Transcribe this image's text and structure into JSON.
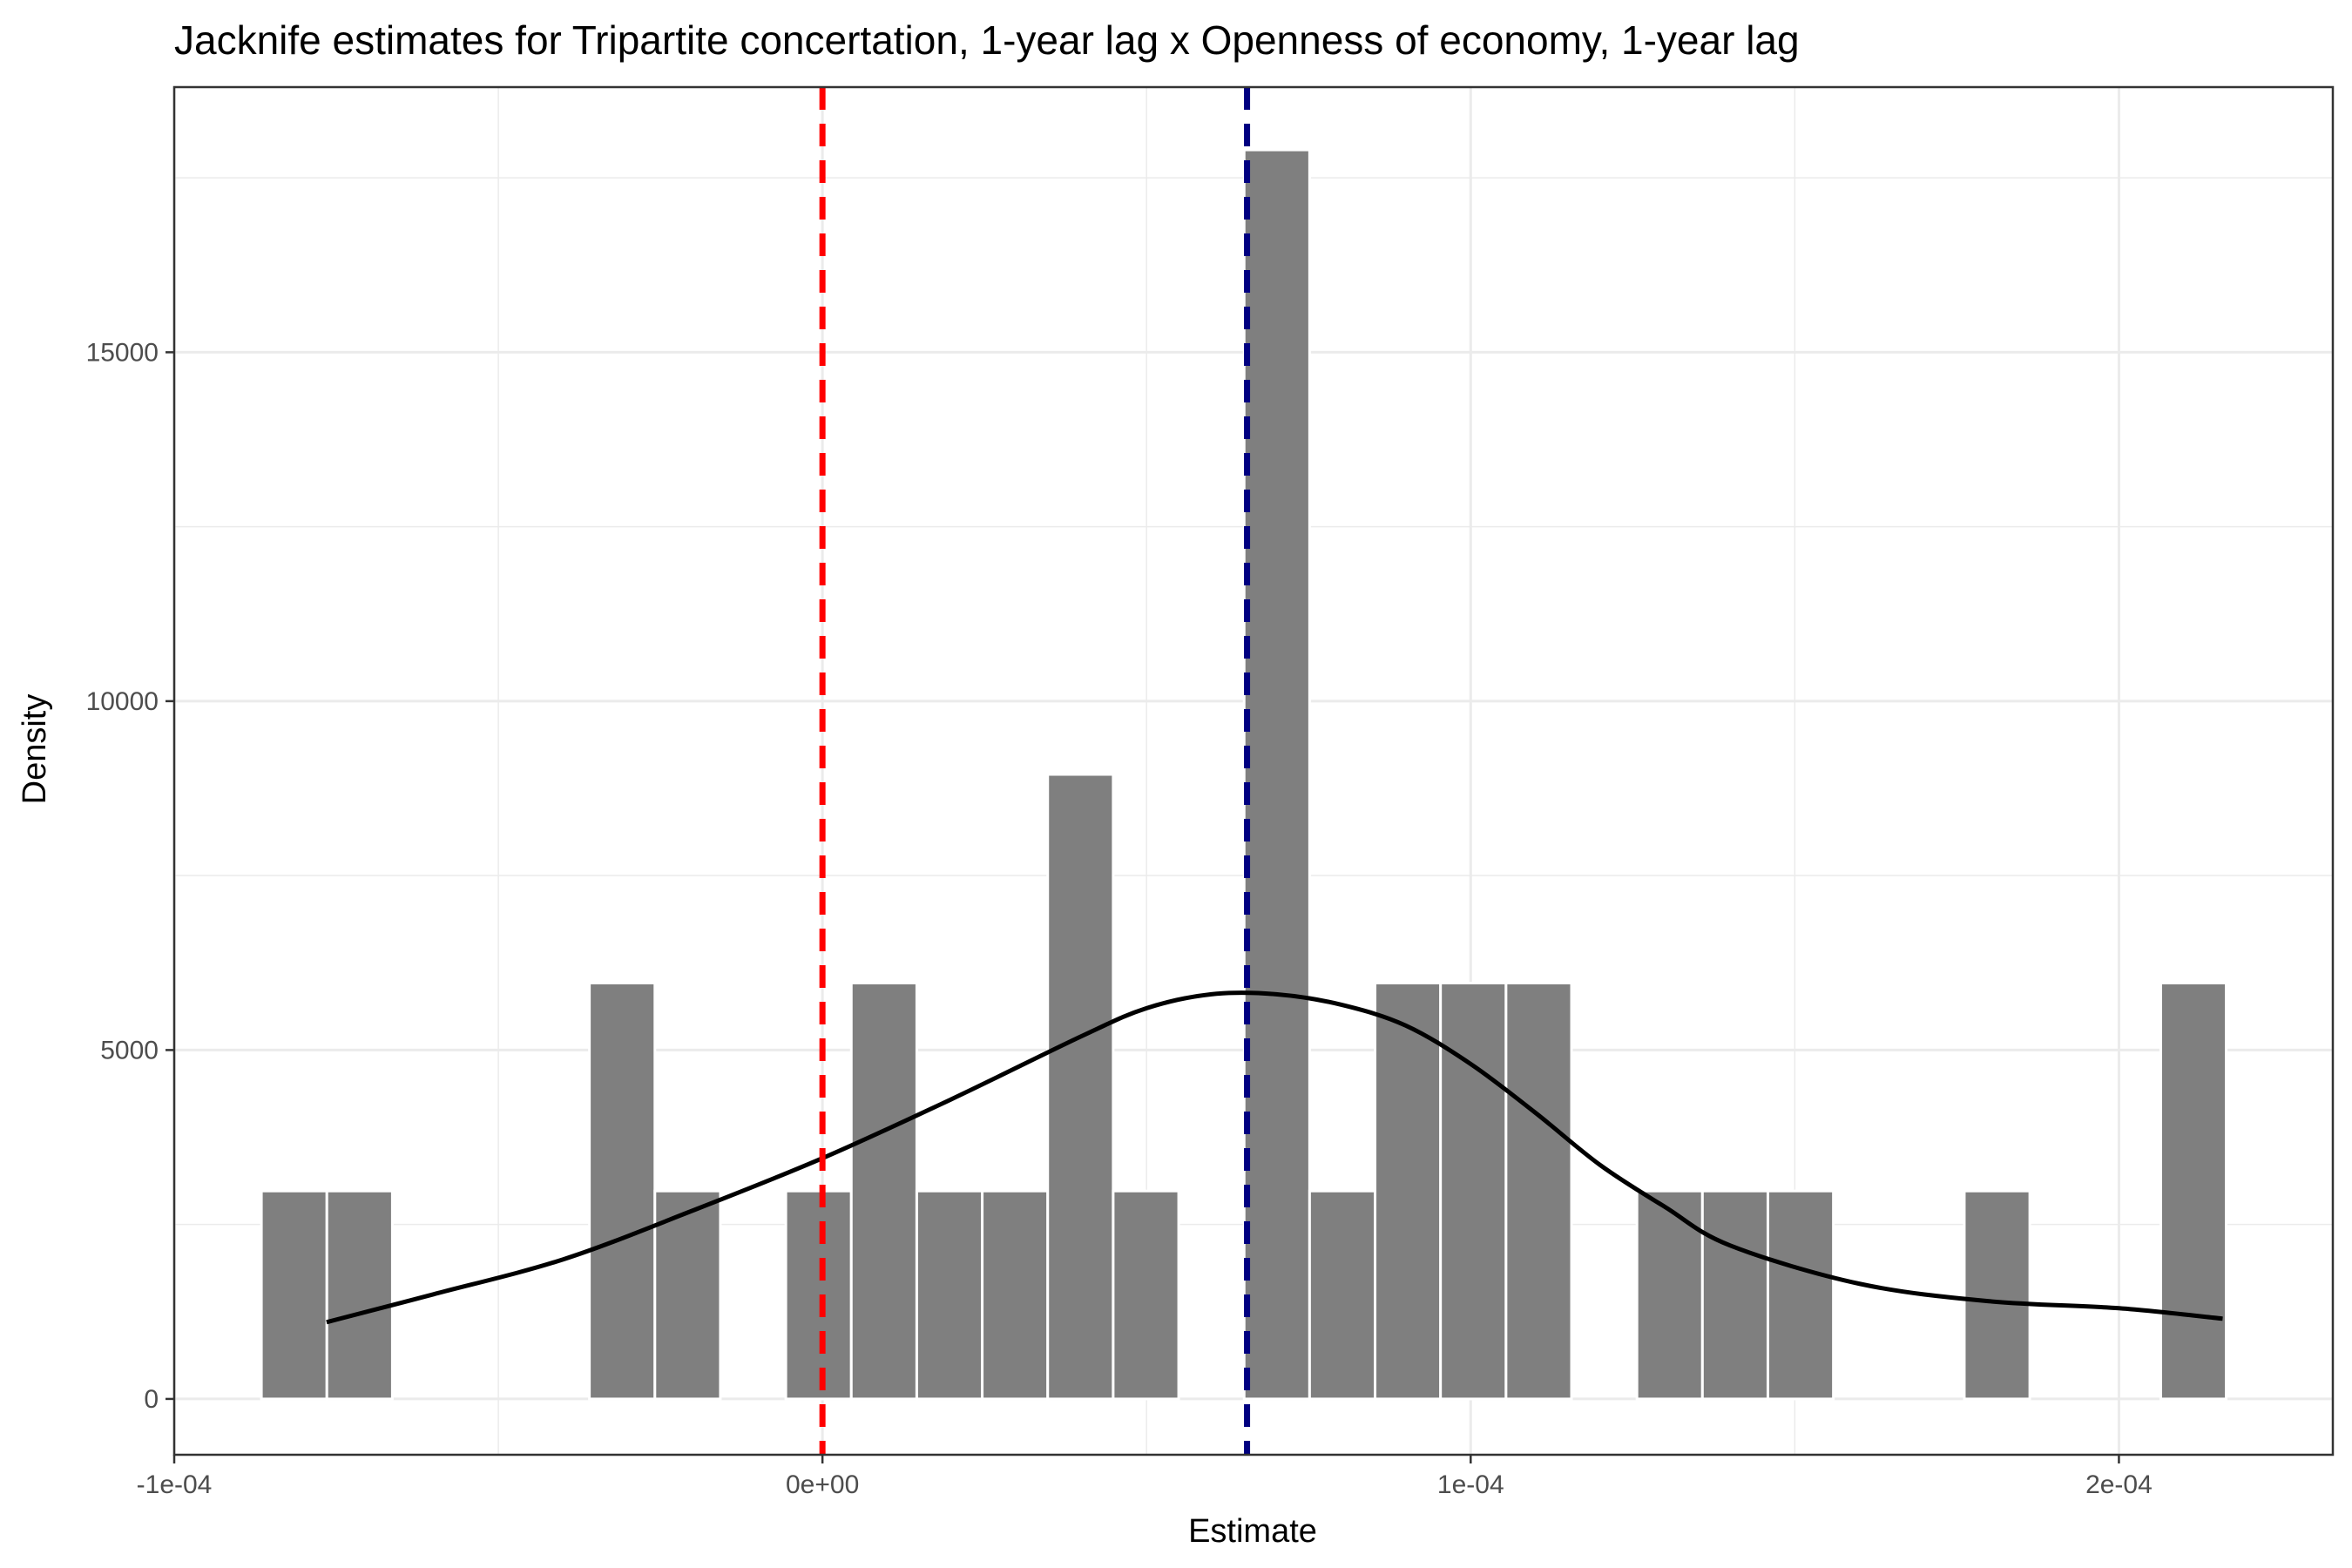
{
  "chart_data": {
    "type": "bar",
    "title": "Jacknife estimates for Tripartite concertation, 1-year lag x Openness of economy, 1-year lag",
    "xlabel": "Estimate",
    "ylabel": "Density",
    "xlim": [
      -0.0001,
      0.000233
    ],
    "ylim": [
      -800,
      18800
    ],
    "x_ticks": [
      -0.0001,
      0.0,
      0.0001,
      0.0002
    ],
    "x_tick_labels": [
      "-1e-04",
      "0e+00",
      "1e-04",
      "2e-04"
    ],
    "y_ticks": [
      0,
      5000,
      10000,
      15000
    ],
    "y_tick_labels": [
      "0",
      "5000",
      "10000",
      "15000"
    ],
    "grid": true,
    "bin_width": 1.01e-05,
    "bins": [
      {
        "x": -8.15e-05,
        "density": 2980
      },
      {
        "x": -7.14e-05,
        "density": 2980
      },
      {
        "x": -3.09e-05,
        "density": 5960
      },
      {
        "x": -2.08e-05,
        "density": 2980
      },
      {
        "x": -6e-07,
        "density": 2980
      },
      {
        "x": 9.5e-06,
        "density": 5960
      },
      {
        "x": 1.96e-05,
        "density": 2980
      },
      {
        "x": 2.97e-05,
        "density": 2980
      },
      {
        "x": 3.98e-05,
        "density": 8950
      },
      {
        "x": 4.99e-05,
        "density": 2980
      },
      {
        "x": 7.01e-05,
        "density": 17900
      },
      {
        "x": 8.02e-05,
        "density": 2980
      },
      {
        "x": 9.03e-05,
        "density": 5960
      },
      {
        "x": 0.0001004,
        "density": 5960
      },
      {
        "x": 0.0001105,
        "density": 5960
      },
      {
        "x": 0.0001307,
        "density": 2980
      },
      {
        "x": 0.0001408,
        "density": 2980
      },
      {
        "x": 0.0001509,
        "density": 2980
      },
      {
        "x": 0.0001812,
        "density": 2980
      },
      {
        "x": 0.0002115,
        "density": 5960
      }
    ],
    "density_curve": {
      "x": [
        -7.65e-05,
        -6e-05,
        -4e-05,
        -2e-05,
        0.0,
        2e-05,
        4e-05,
        5e-05,
        6e-05,
        7e-05,
        8e-05,
        9e-05,
        0.0001,
        0.00011,
        0.00012,
        0.00013,
        0.00014,
        0.00016,
        0.00018,
        0.0002,
        0.000216
      ],
      "y": [
        1100,
        1500,
        2000,
        2700,
        3450,
        4300,
        5200,
        5600,
        5800,
        5800,
        5650,
        5350,
        4800,
        4100,
        3350,
        2750,
        2200,
        1650,
        1400,
        1300,
        1150
      ]
    },
    "reference_lines": [
      {
        "x": 0.0,
        "color": "#ff0000",
        "style": "dashed"
      },
      {
        "x": 6.55e-05,
        "color": "#000080",
        "style": "dashed"
      }
    ],
    "colors": {
      "bar_fill": "#7f7f7f",
      "bar_stroke": "#ffffff",
      "curve": "#000000",
      "grid": "#ebebeb",
      "panel_border": "#333333"
    }
  }
}
